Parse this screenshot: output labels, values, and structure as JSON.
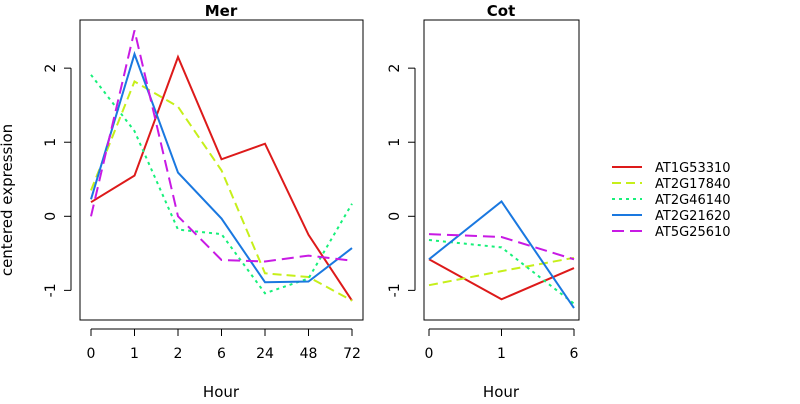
{
  "chart_data": [
    {
      "type": "line",
      "title": "Mer",
      "xlabel": "Hour",
      "ylabel": "centered expression",
      "categories": [
        "0",
        "1",
        "2",
        "6",
        "24",
        "48",
        "72"
      ],
      "yticks": [
        -1,
        0,
        1,
        2
      ],
      "ylim": [
        -1.4,
        2.65
      ],
      "series": [
        {
          "name": "AT1G53310",
          "values": [
            0.19,
            0.55,
            2.15,
            0.77,
            0.98,
            -0.25,
            -1.14
          ]
        },
        {
          "name": "AT2G17840",
          "values": [
            0.35,
            1.82,
            1.48,
            0.62,
            -0.77,
            -0.82,
            -1.14
          ]
        },
        {
          "name": "AT2G46140",
          "values": [
            1.91,
            1.15,
            -0.18,
            -0.24,
            -1.04,
            -0.84,
            0.17
          ]
        },
        {
          "name": "AT2G21620",
          "values": [
            0.23,
            2.19,
            0.59,
            -0.03,
            -0.89,
            -0.88,
            -0.43
          ]
        },
        {
          "name": "AT5G25610",
          "values": [
            0.0,
            2.51,
            0.0,
            -0.59,
            -0.61,
            -0.53,
            -0.6
          ]
        }
      ]
    },
    {
      "type": "line",
      "title": "Cot",
      "xlabel": "Hour",
      "ylabel": "",
      "categories": [
        "0",
        "1",
        "6"
      ],
      "yticks": [
        -1,
        0,
        1,
        2
      ],
      "ylim": [
        -1.4,
        2.65
      ],
      "series": [
        {
          "name": "AT1G53310",
          "values": [
            -0.58,
            -1.12,
            -0.7
          ]
        },
        {
          "name": "AT2G17840",
          "values": [
            -0.93,
            -0.74,
            -0.56
          ]
        },
        {
          "name": "AT2G46140",
          "values": [
            -0.32,
            -0.42,
            -1.18
          ]
        },
        {
          "name": "AT2G21620",
          "values": [
            -0.58,
            0.2,
            -1.24
          ]
        },
        {
          "name": "AT5G25610",
          "values": [
            -0.24,
            -0.28,
            -0.58
          ]
        }
      ]
    }
  ],
  "legend": {
    "placement": "right",
    "items": [
      {
        "name": "AT1G53310",
        "color": "#dd1a1a",
        "dash": "solid"
      },
      {
        "name": "AT2G17840",
        "color": "#c6ef1a",
        "dash": "dashed"
      },
      {
        "name": "AT2G46140",
        "color": "#17f07a",
        "dash": "dotted"
      },
      {
        "name": "AT2G21620",
        "color": "#1a78e0",
        "dash": "solid"
      },
      {
        "name": "AT5G25610",
        "color": "#c81ae4",
        "dash": "longdash"
      }
    ]
  }
}
